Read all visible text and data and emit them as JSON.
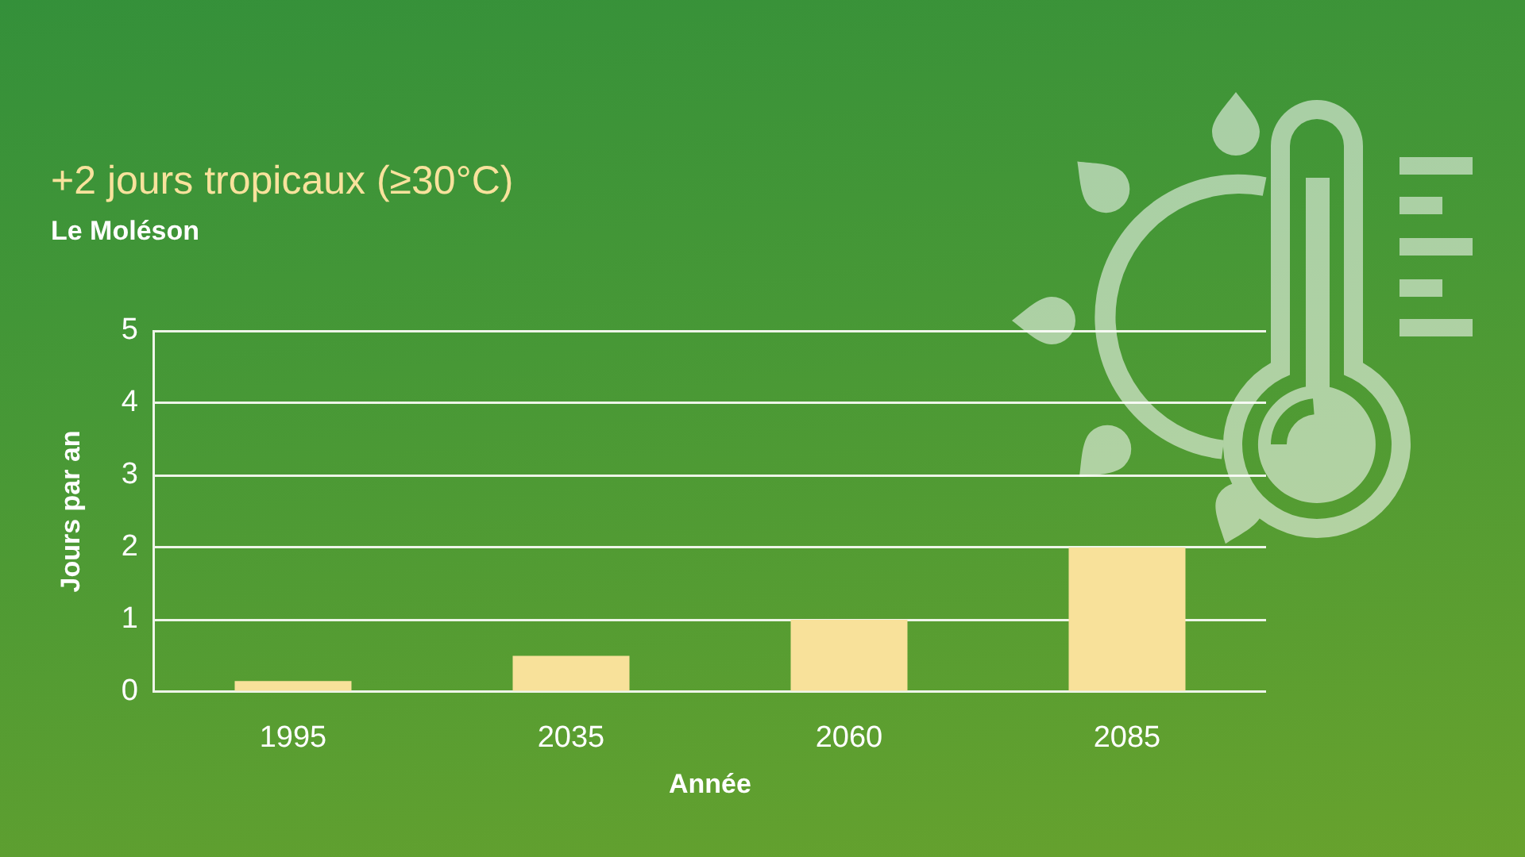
{
  "chart_data": {
    "type": "bar",
    "title": "+2 jours tropicaux (≥30°C)",
    "subtitle": "Le Moléson",
    "xlabel": "Année",
    "ylabel": "Jours par an",
    "categories": [
      "1995",
      "2035",
      "2060",
      "2085"
    ],
    "values": [
      0.15,
      0.5,
      1.0,
      2.0
    ],
    "color": "#f8e19a",
    "ylim": [
      0,
      5
    ],
    "yticks": [
      0,
      1,
      2,
      3,
      4,
      5
    ],
    "grid": "y"
  }
}
